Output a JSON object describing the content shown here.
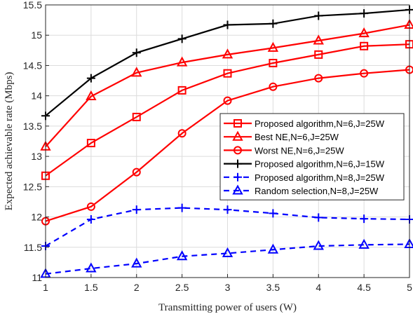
{
  "chart_data": {
    "type": "line",
    "xlabel": "Transmitting power of users (W)",
    "ylabel": "Expected achievable rate (Mbps)",
    "xlim": [
      1,
      5
    ],
    "ylim": [
      11,
      15.5
    ],
    "x": [
      1,
      1.5,
      2,
      2.5,
      3,
      3.5,
      4,
      4.5,
      5
    ],
    "x_ticks": [
      1,
      1.5,
      2,
      2.5,
      3,
      3.5,
      4,
      4.5,
      5
    ],
    "x_tick_labels": [
      "1",
      "1.5",
      "2",
      "2.5",
      "3",
      "3.5",
      "4",
      "4.5",
      "5"
    ],
    "y_ticks": [
      11,
      11.5,
      12,
      12.5,
      13,
      13.5,
      14,
      14.5,
      15,
      15.5
    ],
    "y_tick_labels": [
      "11",
      "11.5",
      "12",
      "12.5",
      "13",
      "13.5",
      "14",
      "14.5",
      "15",
      "15.5"
    ],
    "grid": true,
    "legend_position": "center-right",
    "series": [
      {
        "name": "Proposed algorithm,N=6,J=25W",
        "color": "#ff0000",
        "line_style": "solid",
        "marker": "square",
        "values": [
          12.68,
          13.22,
          13.65,
          14.09,
          14.37,
          14.54,
          14.68,
          14.82,
          14.85
        ]
      },
      {
        "name": "Best NE,N=6,J=25W",
        "color": "#ff0000",
        "line_style": "solid",
        "marker": "triangle",
        "values": [
          13.16,
          13.99,
          14.38,
          14.55,
          14.68,
          14.79,
          14.91,
          15.03,
          15.17
        ]
      },
      {
        "name": "Worst NE,N=6,J=25W",
        "color": "#ff0000",
        "line_style": "solid",
        "marker": "circle",
        "values": [
          11.93,
          12.17,
          12.74,
          13.38,
          13.92,
          14.15,
          14.29,
          14.37,
          14.43
        ]
      },
      {
        "name": "Proposed algorithm,N=6,J=15W",
        "color": "#000000",
        "line_style": "solid",
        "marker": "plus",
        "values": [
          13.67,
          14.29,
          14.71,
          14.94,
          15.17,
          15.19,
          15.32,
          15.36,
          15.42
        ]
      },
      {
        "name": "Proposed algorithm,N=8,J=25W",
        "color": "#0000ff",
        "line_style": "dashed",
        "marker": "plus",
        "values": [
          11.52,
          11.96,
          12.12,
          12.15,
          12.12,
          12.06,
          11.99,
          11.97,
          11.96
        ]
      },
      {
        "name": "Random selection,N=8,J=25W",
        "color": "#0000ff",
        "line_style": "dashed",
        "marker": "triangle",
        "values": [
          11.06,
          11.15,
          11.23,
          11.35,
          11.4,
          11.46,
          11.52,
          11.54,
          11.55
        ]
      }
    ]
  }
}
